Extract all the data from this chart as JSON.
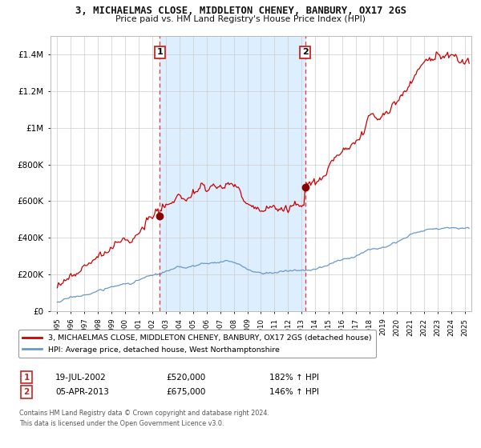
{
  "title": "3, MICHAELMAS CLOSE, MIDDLETON CHENEY, BANBURY, OX17 2GS",
  "subtitle": "Price paid vs. HM Land Registry's House Price Index (HPI)",
  "legend_line1": "3, MICHAELMAS CLOSE, MIDDLETON CHENEY, BANBURY, OX17 2GS (detached house)",
  "legend_line2": "HPI: Average price, detached house, West Northamptonshire",
  "sale1_date": "19-JUL-2002",
  "sale1_price": "£520,000",
  "sale1_hpi": "182% ↑ HPI",
  "sale2_date": "05-APR-2013",
  "sale2_price": "£675,000",
  "sale2_hpi": "146% ↑ HPI",
  "footer": "Contains HM Land Registry data © Crown copyright and database right 2024.\nThis data is licensed under the Open Government Licence v3.0.",
  "red_line_color": "#cc0000",
  "blue_line_color": "#6699cc",
  "shade_color": "#ddeeff",
  "dashed_color": "#ee3333",
  "dot_color": "#880000",
  "bg_color": "#ffffff",
  "grid_color": "#cccccc",
  "t1": 2002.54,
  "t2": 2013.25,
  "p1": 520000,
  "p2": 675000,
  "ylim_min": 0,
  "ylim_max": 1500000,
  "xlim_min": 1994.5,
  "xlim_max": 2025.5,
  "yticks": [
    0,
    200000,
    400000,
    600000,
    800000,
    1000000,
    1200000,
    1400000
  ],
  "ylabels": [
    "£0",
    "£200K",
    "£400K",
    "£600K",
    "£800K",
    "£1M",
    "£1.2M",
    "£1.4M"
  ]
}
